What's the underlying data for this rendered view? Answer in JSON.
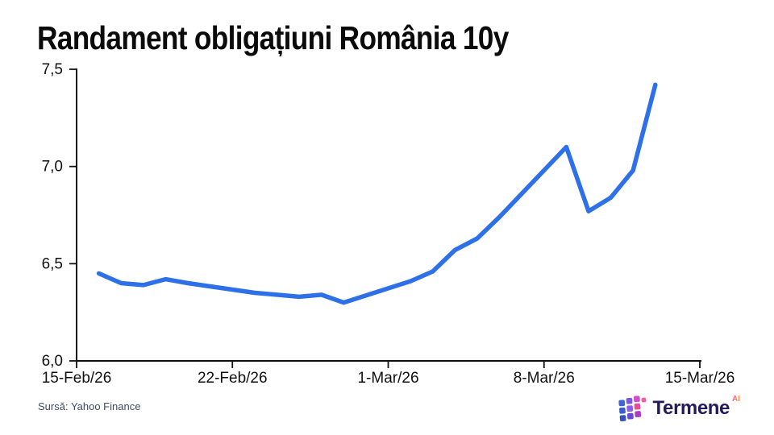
{
  "header": {
    "title": "Randament obligațiuni România 10y"
  },
  "footer": {
    "source": "Sursă: Yahoo Finance"
  },
  "branding": {
    "wordmark": "Termene",
    "superscript": "AI",
    "wordmark_color": "#241a5e",
    "icon_colors": [
      "#3f66d4",
      "#3a5ecb",
      "#3453bd",
      "#7e57e2",
      "#8a5cf0",
      "#6b46d8",
      "#cf4ec8",
      "#ea4b9b",
      "#b03bbf",
      "#ee5fa0"
    ]
  },
  "chart_data": {
    "type": "line",
    "title": "Randament obligațiuni România 10y",
    "xlabel": "",
    "ylabel": "",
    "grid": false,
    "legend_position": "none",
    "line_color": "#2d70e8",
    "axis_color": "#111111",
    "tick_label_color": "#111111",
    "ylim": [
      6.0,
      7.5
    ],
    "x_range_days": [
      0,
      28
    ],
    "y_ticks": [
      {
        "label": "7,5",
        "value": 7.5
      },
      {
        "label": "7,0",
        "value": 7.0
      },
      {
        "label": "6,5",
        "value": 6.5
      },
      {
        "label": "6,0",
        "value": 6.0
      }
    ],
    "x_ticks": [
      {
        "label": "15-Feb/26",
        "day": 0
      },
      {
        "label": "22-Feb/26",
        "day": 7
      },
      {
        "label": "1-Mar/26",
        "day": 14
      },
      {
        "label": "8-Mar/26",
        "day": 21
      },
      {
        "label": "15-Mar/26",
        "day": 28
      }
    ],
    "series": [
      {
        "name": "Randament obligațiuni România 10y",
        "points": [
          {
            "date": "16-Feb-26",
            "x_day": 1,
            "value": 6.45
          },
          {
            "date": "17-Feb-26",
            "x_day": 2,
            "value": 6.4
          },
          {
            "date": "18-Feb-26",
            "x_day": 3,
            "value": 6.39
          },
          {
            "date": "19-Feb-26",
            "x_day": 4,
            "value": 6.42
          },
          {
            "date": "20-Feb-26",
            "x_day": 5,
            "value": 6.4
          },
          {
            "date": "23-Feb-26",
            "x_day": 8,
            "value": 6.35
          },
          {
            "date": "24-Feb-26",
            "x_day": 9,
            "value": 6.34
          },
          {
            "date": "25-Feb-26",
            "x_day": 10,
            "value": 6.33
          },
          {
            "date": "26-Feb-26",
            "x_day": 11,
            "value": 6.34
          },
          {
            "date": "27-Feb-26",
            "x_day": 12,
            "value": 6.3
          },
          {
            "date": "2-Mar-26",
            "x_day": 15,
            "value": 6.41
          },
          {
            "date": "3-Mar-26",
            "x_day": 16,
            "value": 6.46
          },
          {
            "date": "4-Mar-26",
            "x_day": 17,
            "value": 6.57
          },
          {
            "date": "5-Mar-26",
            "x_day": 18,
            "value": 6.63
          },
          {
            "date": "6-Mar-26",
            "x_day": 19,
            "value": 6.74
          },
          {
            "date": "9-Mar-26",
            "x_day": 22,
            "value": 7.1
          },
          {
            "date": "10-Mar-26",
            "x_day": 23,
            "value": 6.77
          },
          {
            "date": "11-Mar-26",
            "x_day": 24,
            "value": 6.84
          },
          {
            "date": "12-Mar-26",
            "x_day": 25,
            "value": 6.98
          },
          {
            "date": "13-Mar-26",
            "x_day": 26,
            "value": 7.42
          }
        ]
      }
    ]
  }
}
